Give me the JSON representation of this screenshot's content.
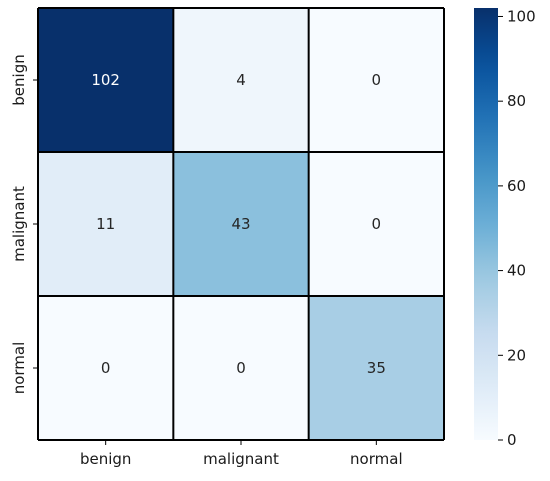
{
  "chart_data": {
    "type": "heatmap",
    "x_categories": [
      "benign",
      "malignant",
      "normal"
    ],
    "y_categories": [
      "benign",
      "malignant",
      "normal"
    ],
    "values": [
      [
        102,
        4,
        0
      ],
      [
        11,
        43,
        0
      ],
      [
        0,
        0,
        35
      ]
    ],
    "title": "",
    "xlabel": "",
    "ylabel": "",
    "colorbar": {
      "range": [
        0,
        102
      ],
      "ticks": [
        0,
        20,
        40,
        60,
        80,
        100
      ]
    },
    "colormap": "Blues",
    "colors": {
      "low": "#f7fbff",
      "high": "#08306b",
      "cell_border": "#000000",
      "text_dark": "#262626",
      "text_light": "#ffffff"
    },
    "grid": true,
    "legend": "colorbar-right"
  }
}
